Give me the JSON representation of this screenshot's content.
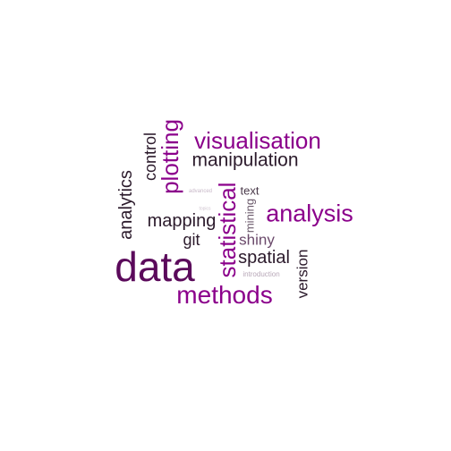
{
  "word_cloud": {
    "words": [
      {
        "text": "data",
        "color": "#5b0a5b"
      },
      {
        "text": "visualisation",
        "color": "#8b008b"
      },
      {
        "text": "methods",
        "color": "#8b008b"
      },
      {
        "text": "analysis",
        "color": "#8b008b"
      },
      {
        "text": "statistical",
        "color": "#8b008b"
      },
      {
        "text": "plotting",
        "color": "#8b008b"
      },
      {
        "text": "manipulation",
        "color": "#2b1a2b"
      },
      {
        "text": "analytics",
        "color": "#2b1a2b"
      },
      {
        "text": "mapping",
        "color": "#2b1a2b"
      },
      {
        "text": "control",
        "color": "#2b1a2b"
      },
      {
        "text": "spatial",
        "color": "#2b1a2b"
      },
      {
        "text": "version",
        "color": "#2b1a2b"
      },
      {
        "text": "git",
        "color": "#2b1a2b"
      },
      {
        "text": "shiny",
        "color": "#6b4a6b"
      },
      {
        "text": "text",
        "color": "#4a3a4a"
      },
      {
        "text": "mining",
        "color": "#6b5a6b"
      },
      {
        "text": "introduction",
        "color": "#b8a8b8"
      },
      {
        "text": "advanced",
        "color": "#c8b8c8"
      },
      {
        "text": "topics",
        "color": "#d0c4d0"
      }
    ]
  }
}
